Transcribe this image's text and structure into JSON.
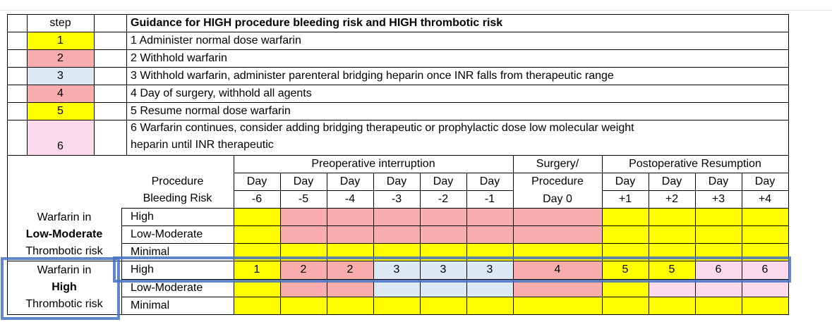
{
  "colors": {
    "yellow": "#ffff00",
    "red": "#f8acac",
    "blue": "#dce8f4",
    "pink": "#fcdaec",
    "highlight": "#4472c4"
  },
  "legend": {
    "step_header": "step",
    "title": "Guidance for HIGH procedure bleeding risk and HIGH thrombotic risk",
    "steps": [
      {
        "num": "1",
        "text": "1   Administer normal dose warfarin",
        "color": "yellow"
      },
      {
        "num": "2",
        "text": "2   Withhold warfarin",
        "color": "red"
      },
      {
        "num": "3",
        "text": "3   Withhold warfarin, administer parenteral bridging heparin once INR falls from therapeutic range",
        "color": "blue"
      },
      {
        "num": "4",
        "text": "4   Day of surgery, withhold all agents",
        "color": "red"
      },
      {
        "num": "5",
        "text": "5   Resume normal dose warfarin",
        "color": "yellow"
      },
      {
        "num": "6",
        "text": "6   Warfarin continues, consider adding bridging therapeutic or prophylactic dose low molecular weight",
        "text2": "heparin until INR therapeutic",
        "color": "pink"
      }
    ]
  },
  "schedule": {
    "groups": {
      "preop": "Preoperative interruption",
      "surgery": "Surgery/",
      "postop": "Postoperative Resumption"
    },
    "procedure_header": [
      "Procedure",
      "Bleeding Risk"
    ],
    "days": [
      {
        "l1": "Day",
        "l2": "-6"
      },
      {
        "l1": "Day",
        "l2": "-5"
      },
      {
        "l1": "Day",
        "l2": "-4"
      },
      {
        "l1": "Day",
        "l2": "-3"
      },
      {
        "l1": "Day",
        "l2": "-2"
      },
      {
        "l1": "Day",
        "l2": "-1"
      },
      {
        "l1": "Procedure",
        "l2": "Day 0"
      },
      {
        "l1": "Day",
        "l2": "+1"
      },
      {
        "l1": "Day",
        "l2": "+2"
      },
      {
        "l1": "Day",
        "l2": "+3"
      },
      {
        "l1": "Day",
        "l2": "+4"
      }
    ],
    "sections": [
      {
        "label": [
          "Warfarin in",
          "Low-Moderate",
          "Thrombotic risk"
        ],
        "rows": [
          {
            "risk": "High",
            "cells": [
              "yellow",
              "red",
              "red",
              "red",
              "red",
              "red",
              "red",
              "yellow",
              "yellow",
              "yellow",
              "yellow"
            ],
            "values": [
              "",
              "",
              "",
              "",
              "",
              "",
              "",
              "",
              "",
              "",
              ""
            ]
          },
          {
            "risk": "Low-Moderate",
            "cells": [
              "yellow",
              "red",
              "red",
              "red",
              "red",
              "red",
              "red",
              "yellow",
              "yellow",
              "yellow",
              "yellow"
            ],
            "values": [
              "",
              "",
              "",
              "",
              "",
              "",
              "",
              "",
              "",
              "",
              ""
            ]
          },
          {
            "risk": "Minimal",
            "cells": [
              "yellow",
              "yellow",
              "yellow",
              "yellow",
              "yellow",
              "yellow",
              "yellow",
              "yellow",
              "yellow",
              "yellow",
              "yellow"
            ],
            "values": [
              "",
              "",
              "",
              "",
              "",
              "",
              "",
              "",
              "",
              "",
              ""
            ]
          }
        ]
      },
      {
        "label": [
          "Warfarin in",
          "High",
          "Thrombotic risk"
        ],
        "rows": [
          {
            "risk": "High",
            "cells": [
              "yellow",
              "red",
              "red",
              "blue",
              "blue",
              "blue",
              "red",
              "yellow",
              "yellow",
              "pink",
              "pink"
            ],
            "values": [
              "1",
              "2",
              "2",
              "3",
              "3",
              "3",
              "4",
              "5",
              "5",
              "6",
              "6"
            ]
          },
          {
            "risk": "Low-Moderate",
            "cells": [
              "yellow",
              "red",
              "red",
              "blue",
              "blue",
              "blue",
              "red",
              "yellow",
              "pink",
              "pink",
              "pink"
            ],
            "values": [
              "",
              "",
              "",
              "",
              "",
              "",
              "",
              "",
              "",
              "",
              ""
            ]
          },
          {
            "risk": "Minimal",
            "cells": [
              "yellow",
              "yellow",
              "yellow",
              "yellow",
              "yellow",
              "yellow",
              "yellow",
              "yellow",
              "yellow",
              "yellow",
              "yellow"
            ],
            "values": [
              "",
              "",
              "",
              "",
              "",
              "",
              "",
              "",
              "",
              "",
              ""
            ]
          }
        ]
      }
    ]
  }
}
